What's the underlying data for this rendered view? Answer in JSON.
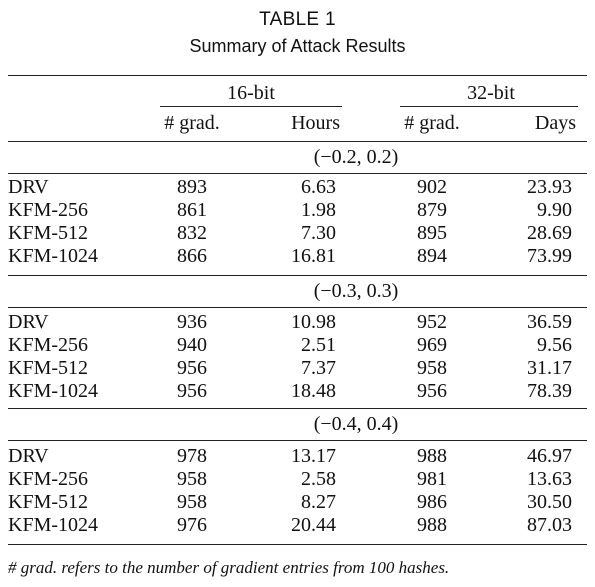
{
  "caption": {
    "label": "TABLE 1",
    "title": "Summary of Attack Results"
  },
  "header": {
    "group_16": "16-bit",
    "group_32": "32-bit",
    "col_grad_16": "# grad.",
    "col_hours": "Hours",
    "col_grad_32": "# grad.",
    "col_days": "Days"
  },
  "sections": [
    {
      "range": "(−0.2, 0.2)",
      "rows": [
        {
          "name": "DRV",
          "grad16": "893",
          "hours": "6.63",
          "grad32": "902",
          "days": "23.93"
        },
        {
          "name": "KFM-256",
          "grad16": "861",
          "hours": "1.98",
          "grad32": "879",
          "days": "9.90"
        },
        {
          "name": "KFM-512",
          "grad16": "832",
          "hours": "7.30",
          "grad32": "895",
          "days": "28.69"
        },
        {
          "name": "KFM-1024",
          "grad16": "866",
          "hours": "16.81",
          "grad32": "894",
          "days": "73.99"
        }
      ]
    },
    {
      "range": "(−0.3, 0.3)",
      "rows": [
        {
          "name": "DRV",
          "grad16": "936",
          "hours": "10.98",
          "grad32": "952",
          "days": "36.59"
        },
        {
          "name": "KFM-256",
          "grad16": "940",
          "hours": "2.51",
          "grad32": "969",
          "days": "9.56"
        },
        {
          "name": "KFM-512",
          "grad16": "956",
          "hours": "7.37",
          "grad32": "958",
          "days": "31.17"
        },
        {
          "name": "KFM-1024",
          "grad16": "956",
          "hours": "18.48",
          "grad32": "956",
          "days": "78.39"
        }
      ]
    },
    {
      "range": "(−0.4, 0.4)",
      "rows": [
        {
          "name": "DRV",
          "grad16": "978",
          "hours": "13.17",
          "grad32": "988",
          "days": "46.97"
        },
        {
          "name": "KFM-256",
          "grad16": "958",
          "hours": "2.58",
          "grad32": "981",
          "days": "13.63"
        },
        {
          "name": "KFM-512",
          "grad16": "958",
          "hours": "8.27",
          "grad32": "986",
          "days": "30.50"
        },
        {
          "name": "KFM-1024",
          "grad16": "976",
          "hours": "20.44",
          "grad32": "988",
          "days": "87.03"
        }
      ]
    }
  ],
  "footnote": "# grad. refers to the number of gradient entries from 100 hashes."
}
